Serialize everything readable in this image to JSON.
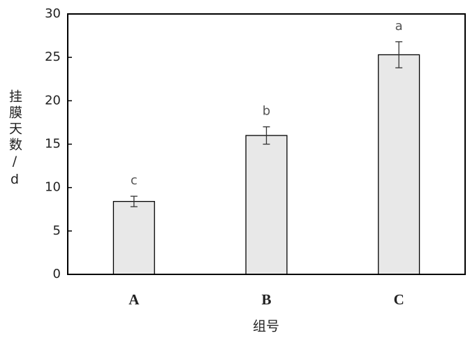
{
  "chart_data": {
    "type": "bar",
    "x_label": "组号",
    "y_label": "挂膜天数/d",
    "categories": [
      "A",
      "B",
      "C"
    ],
    "values": [
      8.4,
      16.0,
      25.3
    ],
    "errors": [
      0.6,
      1.0,
      1.5
    ],
    "annotations": [
      "c",
      "b",
      "a"
    ],
    "color": "#e8e8e8",
    "ylim": [
      0,
      30
    ],
    "yticks": [
      0,
      5,
      10,
      15,
      20,
      25,
      30
    ],
    "grid": false
  }
}
